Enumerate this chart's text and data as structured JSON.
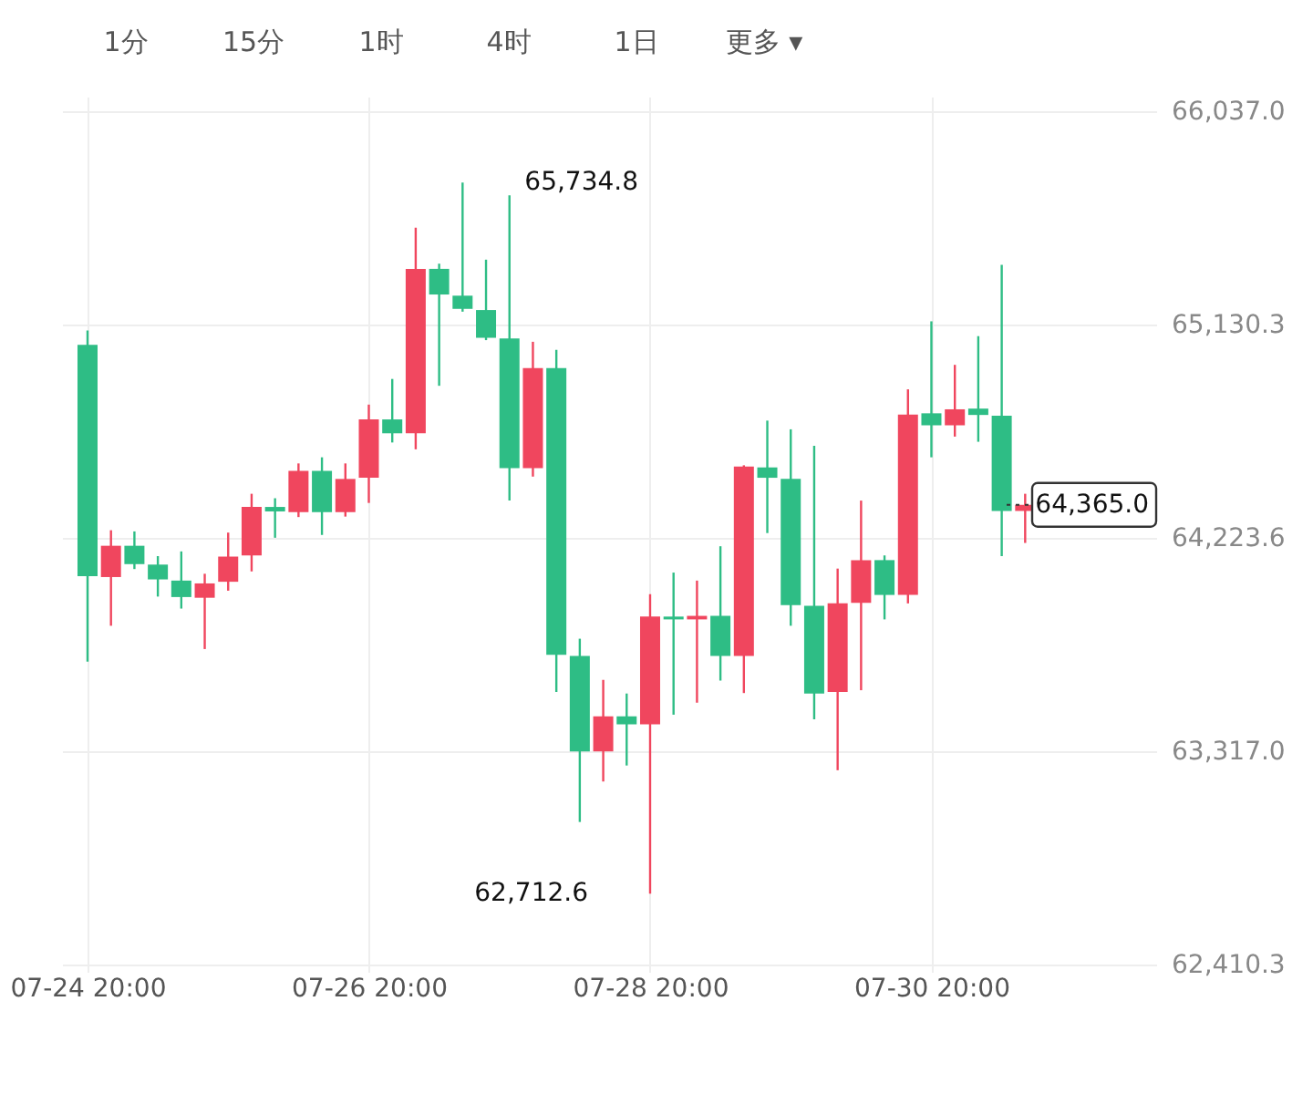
{
  "chart_data": {
    "type": "candlestick",
    "categories": [
      "07-24 20:00",
      null,
      null,
      null,
      null,
      null,
      null,
      null,
      null,
      null,
      null,
      null,
      "07-26 20:00",
      null,
      null,
      null,
      null,
      null,
      null,
      null,
      null,
      null,
      null,
      null,
      "07-28 20:00",
      null,
      null,
      null,
      null,
      null,
      null,
      null,
      null,
      null,
      null,
      null,
      "07-30 20:00",
      null,
      null,
      null,
      null
    ],
    "ohlc": [
      [
        65045,
        65106,
        63698,
        64062
      ],
      [
        64058,
        64257,
        63851,
        64191
      ],
      [
        64191,
        64252,
        64092,
        64113
      ],
      [
        64111,
        64147,
        63975,
        64048
      ],
      [
        64043,
        64167,
        63924,
        63973
      ],
      [
        63970,
        64072,
        63752,
        64031
      ],
      [
        64038,
        64247,
        64000,
        64145
      ],
      [
        64150,
        64412,
        64082,
        64356
      ],
      [
        64356,
        64393,
        64225,
        64337
      ],
      [
        64334,
        64541,
        64313,
        64509
      ],
      [
        64509,
        64567,
        64237,
        64334
      ],
      [
        64334,
        64541,
        64315,
        64475
      ],
      [
        64480,
        64791,
        64373,
        64728
      ],
      [
        64728,
        64900,
        64630,
        64669
      ],
      [
        64669,
        65543,
        64601,
        65368
      ],
      [
        65368,
        65390,
        64871,
        65259
      ],
      [
        65254,
        65734.8,
        65186,
        65198
      ],
      [
        65193,
        65407,
        65065,
        65075
      ],
      [
        65072,
        65681,
        64383,
        64521
      ],
      [
        64521,
        65058,
        64485,
        64946
      ],
      [
        64946,
        65024,
        63570,
        63728
      ],
      [
        63723,
        63796,
        63017,
        63317
      ],
      [
        63317,
        63621,
        63189,
        63466
      ],
      [
        63466,
        63563,
        63257,
        63432
      ],
      [
        63432,
        63985,
        62712.6,
        63890
      ],
      [
        63890,
        64077,
        63473,
        63878
      ],
      [
        63878,
        64043,
        63524,
        63893
      ],
      [
        63893,
        64189,
        63618,
        63723
      ],
      [
        63723,
        64533,
        63565,
        64528
      ],
      [
        64524,
        64723,
        64245,
        64480
      ],
      [
        64475,
        64686,
        63851,
        63939
      ],
      [
        63936,
        64616,
        63453,
        63563
      ],
      [
        63570,
        64094,
        63237,
        63946
      ],
      [
        63948,
        64383,
        63577,
        64130
      ],
      [
        64130,
        64150,
        63878,
        63982
      ],
      [
        63982,
        64856,
        63946,
        64749
      ],
      [
        64754,
        65145,
        64567,
        64703
      ],
      [
        64703,
        64960,
        64655,
        64771
      ],
      [
        64774,
        65082,
        64633,
        64747
      ],
      [
        64744,
        65385,
        64147,
        64339
      ],
      [
        64339,
        64412,
        64203,
        64365.0
      ]
    ],
    "colors": [
      "#2ebd85",
      "#f0465e",
      "#2ebd85",
      "#2ebd85",
      "#2ebd85",
      "#f0465e",
      "#f0465e",
      "#f0465e",
      "#2ebd85",
      "#f0465e",
      "#2ebd85",
      "#f0465e",
      "#f0465e",
      "#2ebd85",
      "#f0465e",
      "#2ebd85",
      "#2ebd85",
      "#2ebd85",
      "#2ebd85",
      "#f0465e",
      "#2ebd85",
      "#2ebd85",
      "#f0465e",
      "#2ebd85",
      "#f0465e",
      "#2ebd85",
      "#f0465e",
      "#2ebd85",
      "#f0465e",
      "#2ebd85",
      "#2ebd85",
      "#2ebd85",
      "#f0465e",
      "#f0465e",
      "#2ebd85",
      "#f0465e",
      "#2ebd85",
      "#f0465e",
      "#2ebd85",
      "#2ebd85",
      "#f0465e"
    ],
    "ylim": [
      62380,
      66100
    ],
    "yticks": [
      {
        "value": 62410.3,
        "label": "62,410.3"
      },
      {
        "value": 63317.0,
        "label": "63,317.0"
      },
      {
        "value": 64223.6,
        "label": "64,223.6"
      },
      {
        "value": 65130.3,
        "label": "65,130.3"
      },
      {
        "value": 66037.0,
        "label": "66,037.0"
      }
    ],
    "grid": true,
    "ref_lines": [
      {
        "axis": "y",
        "value": 64365.0,
        "label": "64,365.0",
        "line_style": "dotted",
        "color": "#333333"
      }
    ],
    "annotations": [
      "1分",
      "15分",
      "1时",
      "4时",
      "1日",
      "更多 ▾",
      "65,734.8",
      "62,712.6"
    ]
  }
}
